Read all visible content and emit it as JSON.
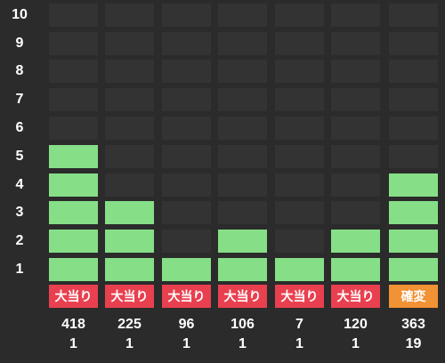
{
  "chart_data": {
    "type": "bar",
    "ylim": [
      0,
      10
    ],
    "y_ticks": [
      "1",
      "2",
      "3",
      "4",
      "5",
      "6",
      "7",
      "8",
      "9",
      "10"
    ],
    "columns": [
      {
        "value": 5,
        "label": "大当り",
        "label_color": "#e9404f",
        "count": "418",
        "sub": "1"
      },
      {
        "value": 3,
        "label": "大当り",
        "label_color": "#e9404f",
        "count": "225",
        "sub": "1"
      },
      {
        "value": 1,
        "label": "大当り",
        "label_color": "#e9404f",
        "count": "96",
        "sub": "1"
      },
      {
        "value": 2,
        "label": "大当り",
        "label_color": "#e9404f",
        "count": "106",
        "sub": "1"
      },
      {
        "value": 1,
        "label": "大当り",
        "label_color": "#e9404f",
        "count": "7",
        "sub": "1"
      },
      {
        "value": 2,
        "label": "大当り",
        "label_color": "#e9404f",
        "count": "120",
        "sub": "1"
      },
      {
        "value": 4,
        "label": "確変",
        "label_color": "#f19234",
        "count": "363",
        "sub": "19"
      }
    ]
  },
  "colors": {
    "background": "#2b2b2b",
    "empty_cell": "#333333",
    "filled_cell": "#86df86"
  }
}
